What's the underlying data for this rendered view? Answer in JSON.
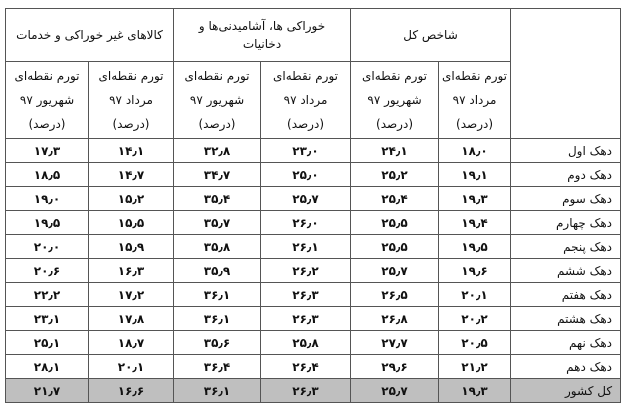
{
  "table": {
    "groups": [
      "شاخص کل",
      "خوراکی ها، آشامیدنی‌ها و دخانیات",
      "کالاهای غیر خوراکی و خدمات"
    ],
    "columns": [
      [
        "تورم نقطه‌ای",
        "مرداد ۹۷",
        "(درصد)"
      ],
      [
        "تورم نقطه‌ای",
        "شهریور ۹۷",
        "(درصد)"
      ],
      [
        "تورم نقطه‌ای",
        "مرداد ۹۷",
        "(درصد)"
      ],
      [
        "تورم نقطه‌ای",
        "شهریور ۹۷",
        "(درصد)"
      ],
      [
        "تورم نقطه‌ای",
        "مرداد ۹۷",
        "(درصد)"
      ],
      [
        "تورم نقطه‌ای",
        "شهریور ۹۷",
        "(درصد)"
      ]
    ],
    "rows": [
      [
        "دهک اول",
        "۱۸٫۰",
        "۲۴٫۱",
        "۲۳٫۰",
        "۳۲٫۸",
        "۱۴٫۱",
        "۱۷٫۳"
      ],
      [
        "دهک دوم",
        "۱۹٫۱",
        "۲۵٫۲",
        "۲۵٫۰",
        "۳۴٫۷",
        "۱۴٫۷",
        "۱۸٫۵"
      ],
      [
        "دهک سوم",
        "۱۹٫۳",
        "۲۵٫۴",
        "۲۵٫۷",
        "۳۵٫۴",
        "۱۵٫۲",
        "۱۹٫۰"
      ],
      [
        "دهک چهارم",
        "۱۹٫۴",
        "۲۵٫۵",
        "۲۶٫۰",
        "۳۵٫۷",
        "۱۵٫۵",
        "۱۹٫۵"
      ],
      [
        "دهک پنجم",
        "۱۹٫۵",
        "۲۵٫۵",
        "۲۶٫۱",
        "۳۵٫۸",
        "۱۵٫۹",
        "۲۰٫۰"
      ],
      [
        "دهک ششم",
        "۱۹٫۶",
        "۲۵٫۷",
        "۲۶٫۲",
        "۳۵٫۹",
        "۱۶٫۳",
        "۲۰٫۶"
      ],
      [
        "دهک هفتم",
        "۲۰٫۱",
        "۲۶٫۵",
        "۲۶٫۳",
        "۳۶٫۱",
        "۱۷٫۲",
        "۲۲٫۲"
      ],
      [
        "دهک هشتم",
        "۲۰٫۲",
        "۲۶٫۸",
        "۲۶٫۳",
        "۳۶٫۱",
        "۱۷٫۸",
        "۲۳٫۱"
      ],
      [
        "دهک نهم",
        "۲۰٫۵",
        "۲۷٫۷",
        "۲۵٫۸",
        "۳۵٫۶",
        "۱۸٫۷",
        "۲۵٫۱"
      ],
      [
        "دهک دهم",
        "۲۱٫۲",
        "۲۹٫۶",
        "۲۶٫۴",
        "۳۶٫۴",
        "۲۰٫۱",
        "۲۸٫۱"
      ],
      [
        "کل کشور",
        "۱۹٫۳",
        "۲۵٫۷",
        "۲۶٫۳",
        "۳۶٫۱",
        "۱۶٫۶",
        "۲۱٫۷"
      ]
    ]
  }
}
